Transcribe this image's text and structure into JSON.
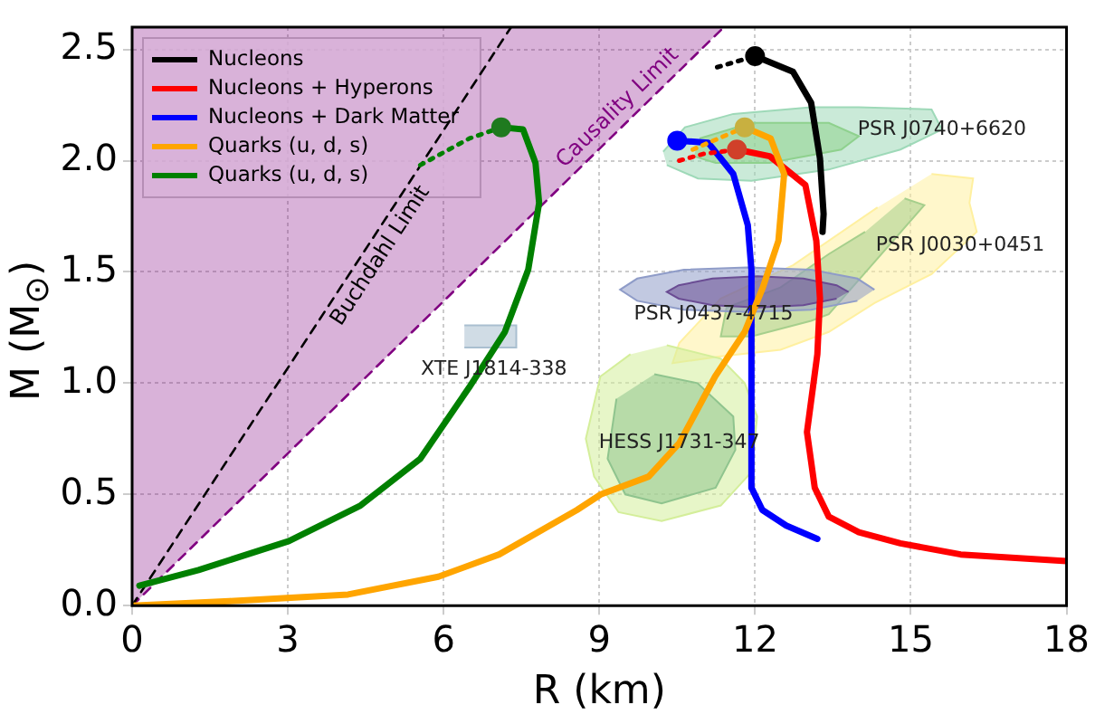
{
  "chart_data": {
    "type": "line",
    "xlabel": "R (km)",
    "ylabel": "M (M$_{⊙}$)",
    "xlim": [
      0,
      18
    ],
    "ylim": [
      0,
      2.6
    ],
    "xticks": [
      0,
      3,
      6,
      9,
      12,
      15,
      18
    ],
    "yticks": [
      {
        "value": 0,
        "label": "0.0"
      },
      0.5,
      {
        "value": 1,
        "label": "1.0"
      },
      1.5,
      {
        "value": 2,
        "label": "2.0"
      },
      2.5
    ],
    "grid": true,
    "legend": "top left",
    "series": [
      {
        "type": "area",
        "color": "#9ed9b8",
        "x": [
          10.23,
          10.65,
          11.58,
          13.08,
          14.0,
          15.4,
          15.6,
          14.8,
          13.42,
          11.93,
          10.9,
          10.3
        ],
        "values": [
          2.04,
          2.15,
          2.21,
          2.24,
          2.24,
          2.23,
          2.14,
          2.05,
          1.96,
          1.91,
          1.92,
          1.98
        ]
      },
      {
        "type": "area",
        "color": "#8fd18e",
        "x": [
          10.93,
          11.93,
          13.42,
          14.0,
          13.66,
          12.28,
          11.24,
          10.82
        ],
        "values": [
          2.1,
          2.17,
          2.17,
          2.11,
          2.05,
          1.99,
          1.99,
          2.02
        ]
      },
      {
        "type": "area",
        "color": "#fff0a0",
        "x": [
          15.4,
          16.2,
          16.13,
          16.27,
          15.4,
          14.3,
          13.42,
          12.49,
          11.34,
          10.41,
          10.54,
          11.34,
          12.73,
          14.36
        ],
        "values": [
          1.94,
          1.92,
          1.81,
          1.68,
          1.49,
          1.36,
          1.23,
          1.15,
          1.12,
          1.09,
          1.18,
          1.38,
          1.53,
          1.79
        ]
      },
      {
        "type": "area",
        "color": "#a6cf8c",
        "x": [
          14.88,
          15.26,
          14.36,
          13.42,
          13.08,
          11.93,
          11.34,
          11.45,
          12.49,
          13.42,
          14.12
        ],
        "values": [
          1.83,
          1.8,
          1.56,
          1.31,
          1.28,
          1.21,
          1.21,
          1.34,
          1.43,
          1.58,
          1.68
        ]
      },
      {
        "type": "area",
        "color": "#8f9cc8",
        "x": [
          14.3,
          13.97,
          13.08,
          11.85,
          10.63,
          9.73,
          9.4,
          9.73,
          10.63,
          11.85,
          13.08,
          13.97
        ],
        "values": [
          1.42,
          1.47,
          1.51,
          1.52,
          1.51,
          1.47,
          1.42,
          1.37,
          1.33,
          1.32,
          1.33,
          1.37
        ]
      },
      {
        "type": "area",
        "color": "#6a4c93",
        "x": [
          13.8,
          13.57,
          12.93,
          12.05,
          11.18,
          10.53,
          10.3,
          10.53,
          11.18,
          12.05,
          12.93,
          13.57
        ],
        "values": [
          1.41,
          1.44,
          1.47,
          1.48,
          1.47,
          1.44,
          1.41,
          1.38,
          1.35,
          1.34,
          1.35,
          1.38
        ]
      },
      {
        "type": "area",
        "color": "#d4ee9a",
        "x": [
          10.3,
          11.34,
          11.8,
          12.04,
          11.93,
          11.34,
          10.2,
          9.37,
          8.9,
          8.74,
          9.02,
          9.6
        ],
        "values": [
          1.17,
          1.11,
          1.0,
          0.85,
          0.6,
          0.45,
          0.38,
          0.42,
          0.58,
          0.75,
          1.03,
          1.13
        ]
      },
      {
        "type": "area",
        "color": "#8fc48e",
        "x": [
          10.06,
          10.89,
          11.58,
          11.62,
          11.24,
          10.2,
          9.5,
          9.16,
          9.33
        ],
        "values": [
          1.04,
          1.0,
          0.85,
          0.7,
          0.53,
          0.46,
          0.5,
          0.66,
          0.93
        ]
      },
      {
        "type": "area",
        "color": "#a9bfd0",
        "x": [
          6.4,
          7.4,
          7.4,
          6.4
        ],
        "values": [
          1.16,
          1.16,
          1.26,
          1.26
        ]
      },
      {
        "name": "Causality Limit",
        "color": "#800080",
        "line_style": "dashed",
        "x": [
          0,
          11.4
        ],
        "values": [
          0,
          2.6
        ],
        "lower": [
          0,
          2.6
        ],
        "upper": [
          2.6,
          2.6
        ]
      },
      {
        "name": "Buchdahl Limit",
        "color": "#000000",
        "line_style": "dashed",
        "x": [
          0,
          7.3
        ],
        "values": [
          0,
          2.6
        ]
      },
      {
        "name": "Nucleons",
        "color": "#000000",
        "x": [
          12.0,
          12.73,
          13.08,
          13.25,
          13.32,
          13.3
        ],
        "values": [
          2.47,
          2.4,
          2.26,
          2.01,
          1.76,
          1.68
        ]
      },
      {
        "name": "Nucleons + Hyperons",
        "color": "#ff0000",
        "x": [
          11.65,
          12.28,
          12.97,
          13.18,
          13.25,
          13.2,
          13.0,
          13.15,
          13.42,
          14.0,
          14.8,
          15.96,
          18.0
        ],
        "values": [
          2.05,
          2.02,
          1.89,
          1.64,
          1.38,
          1.13,
          0.78,
          0.53,
          0.4,
          0.33,
          0.28,
          0.23,
          0.2
        ]
      },
      {
        "name": "Nucleons + Dark Matter",
        "color": "#0000ff",
        "x": [
          10.5,
          11.1,
          11.58,
          11.86,
          11.93,
          11.93,
          12.14,
          12.6,
          13.2
        ],
        "values": [
          2.09,
          2.08,
          1.94,
          1.71,
          1.51,
          0.53,
          0.43,
          0.36,
          0.3
        ]
      },
      {
        "name": "Quarks (u, d, s)",
        "color": "#ffa500",
        "x": [
          11.8,
          12.3,
          12.56,
          12.45,
          12.15,
          11.8,
          11.23,
          10.54,
          9.95,
          9.03,
          8.57,
          7.07,
          5.9,
          4.16,
          1.87,
          0
        ],
        "values": [
          2.15,
          2.1,
          1.94,
          1.64,
          1.43,
          1.23,
          1.03,
          0.73,
          0.58,
          0.5,
          0.43,
          0.23,
          0.13,
          0.05,
          0.02,
          0
        ]
      },
      {
        "name": "Quarks (u, d, s)",
        "color": "#008000",
        "x": [
          7.11,
          7.53,
          7.77,
          7.84,
          7.63,
          7.18,
          6.49,
          5.55,
          4.4,
          3.02,
          1.28,
          0.14
        ],
        "values": [
          2.15,
          2.14,
          1.99,
          1.81,
          1.51,
          1.23,
          0.98,
          0.66,
          0.45,
          0.29,
          0.16,
          0.09
        ]
      },
      {
        "color": "#000000",
        "line_style": "dotted",
        "x": [
          11.27,
          12.0
        ],
        "values": [
          2.42,
          2.47
        ]
      },
      {
        "color": "#ff0000",
        "line_style": "dotted",
        "x": [
          10.54,
          11.0,
          11.65
        ],
        "values": [
          2.0,
          2.03,
          2.05
        ]
      },
      {
        "color": "#ffa500",
        "line_style": "dotted",
        "x": [
          10.8,
          11.3,
          11.8
        ],
        "values": [
          2.05,
          2.1,
          2.15
        ]
      },
      {
        "color": "#008000",
        "line_style": "dotted",
        "x": [
          5.55,
          6.5,
          7.11
        ],
        "values": [
          1.98,
          2.1,
          2.15
        ]
      },
      {
        "type": "scatter",
        "marker": "circle",
        "x": [
          12.0,
          11.65,
          10.5,
          11.8,
          7.11
        ],
        "values": [
          2.47,
          2.05,
          2.09,
          2.15,
          2.15
        ],
        "colors": [
          "#000000",
          "#d0402a",
          "#0000ff",
          "#c8b040",
          "#1f7a1f"
        ]
      }
    ],
    "annotations": [
      {
        "text": "PSR J0740+6620",
        "x": 15.6,
        "y": 2.14
      },
      {
        "text": "PSR J0030+0451",
        "x": 15.95,
        "y": 1.62
      },
      {
        "text": "PSR J0437-4715",
        "x": 11.2,
        "y": 1.31
      },
      {
        "text": "XTE J1814-338",
        "x": 6.97,
        "y": 1.06
      },
      {
        "text": "HESS J1731-347",
        "x": 10.54,
        "y": 0.73
      }
    ]
  }
}
